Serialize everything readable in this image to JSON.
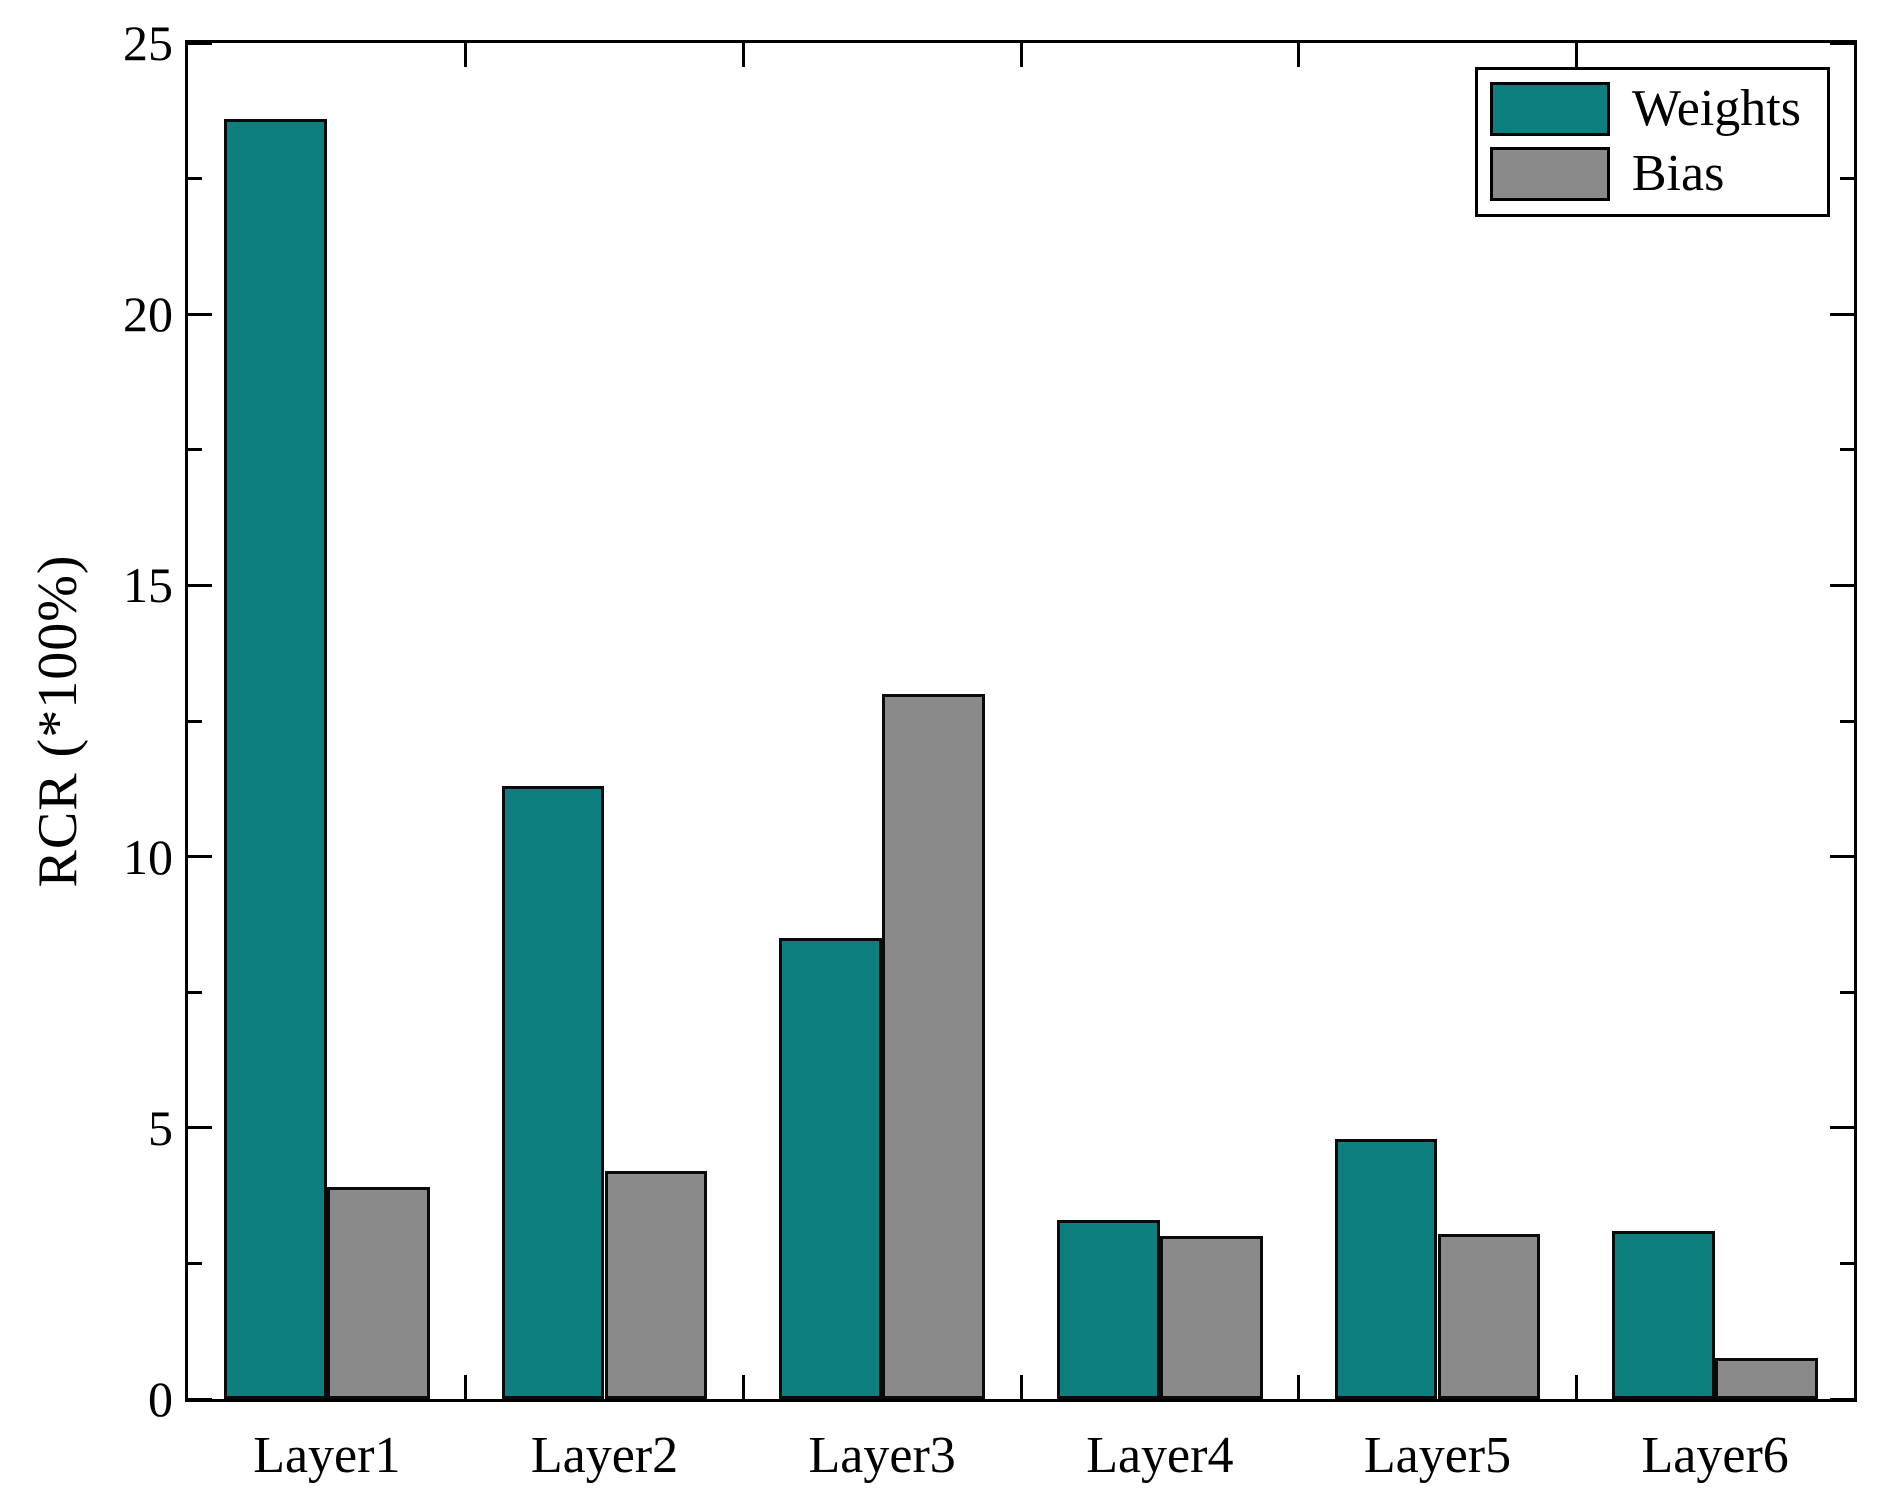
{
  "chart_data": {
    "type": "bar",
    "title": "",
    "categories": [
      "Layer1",
      "Layer2",
      "Layer3",
      "Layer4",
      "Layer5",
      "Layer6"
    ],
    "series": [
      {
        "name": "Weights",
        "color": "#0e7f7f",
        "values": [
          23.6,
          11.3,
          8.5,
          3.3,
          4.8,
          3.1
        ]
      },
      {
        "name": "Bias",
        "color": "#8a8a8a",
        "values": [
          3.9,
          4.2,
          13.0,
          3.0,
          3.05,
          0.75
        ]
      }
    ],
    "xlabel": "",
    "ylabel": "RCR (*100%)",
    "ylim": [
      0,
      25
    ],
    "yticks": [
      0,
      5,
      10,
      15,
      20,
      25
    ],
    "minor_tick_step": 2.5,
    "grid": false,
    "legend_position": "top-right"
  }
}
